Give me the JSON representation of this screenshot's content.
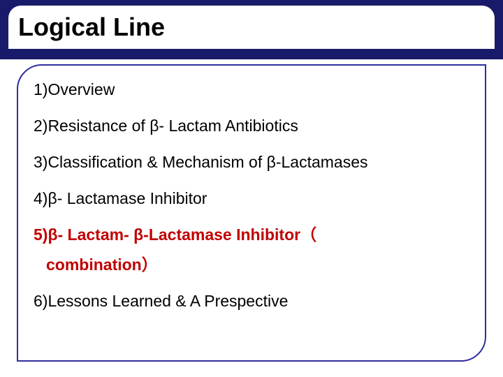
{
  "slide": {
    "title": "Logical Line",
    "items": [
      {
        "text": "1)Overview",
        "highlight": false
      },
      {
        "text": "2)Resistance of β- Lactam Antibiotics",
        "highlight": false
      },
      {
        "text": "3)Classification & Mechanism of β-Lactamases",
        "highlight": false
      },
      {
        "text": "4)β- Lactamase Inhibitor",
        "highlight": false
      },
      {
        "text_line1": "5)β- Lactam- β-Lactamase Inhibitor（",
        "text_line2": "combination）",
        "highlight": true
      },
      {
        "text": "6)Lessons Learned & A Prespective",
        "highlight": false
      }
    ]
  },
  "style": {
    "header_bg": "#1a1a6a",
    "title_color": "#000000",
    "title_fontsize": 36,
    "body_fontsize": 23,
    "highlight_color": "#c00000",
    "text_color": "#000000",
    "border_color": "#2e2ea0",
    "background": "#ffffff"
  }
}
